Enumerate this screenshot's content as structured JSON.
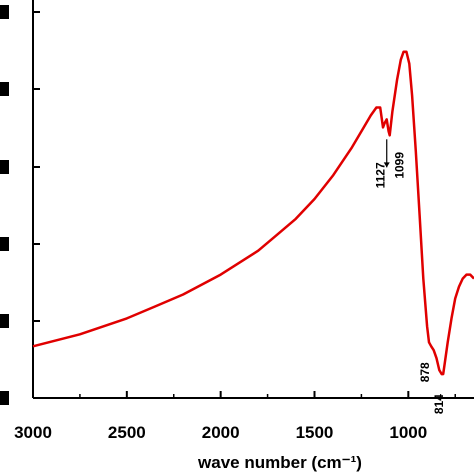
{
  "chart_data": {
    "type": "line",
    "title": "",
    "xlabel": "wave number (cm⁻¹)",
    "ylabel": "",
    "x_reversed": true,
    "xlim": [
      3000,
      650
    ],
    "ylim": [
      0,
      1
    ],
    "x_ticks": [
      "3000",
      "2500",
      "2000",
      "1500",
      "1000"
    ],
    "y_ticks_visible_as_partial_labels": true,
    "grid": false,
    "series": [
      {
        "color": "#e00000",
        "x": [
          3000,
          2750,
          2500,
          2350,
          2200,
          2000,
          1800,
          1700,
          1600,
          1500,
          1400,
          1300,
          1200,
          1170,
          1150,
          1135,
          1127,
          1115,
          1105,
          1099,
          1085,
          1060,
          1040,
          1025,
          1010,
          995,
          980,
          960,
          940,
          920,
          900,
          890,
          878,
          865,
          850,
          835,
          822,
          814,
          805,
          790,
          770,
          750,
          730,
          710,
          690,
          670,
          650
        ],
        "y": [
          0.13,
          0.16,
          0.2,
          0.23,
          0.26,
          0.31,
          0.37,
          0.41,
          0.45,
          0.5,
          0.56,
          0.63,
          0.71,
          0.73,
          0.73,
          0.68,
          0.69,
          0.7,
          0.67,
          0.66,
          0.72,
          0.8,
          0.85,
          0.87,
          0.87,
          0.84,
          0.76,
          0.62,
          0.46,
          0.3,
          0.18,
          0.14,
          0.13,
          0.12,
          0.1,
          0.07,
          0.06,
          0.06,
          0.09,
          0.14,
          0.2,
          0.25,
          0.28,
          0.3,
          0.31,
          0.31,
          0.3
        ]
      }
    ],
    "annotations": [
      {
        "text": "1127",
        "x": 1127,
        "y": 0.69
      },
      {
        "text": "1099",
        "x": 1099,
        "y": 0.66
      },
      {
        "text": "878",
        "x": 878,
        "y": 0.13
      },
      {
        "text": "814",
        "x": 814,
        "y": 0.06
      }
    ]
  }
}
